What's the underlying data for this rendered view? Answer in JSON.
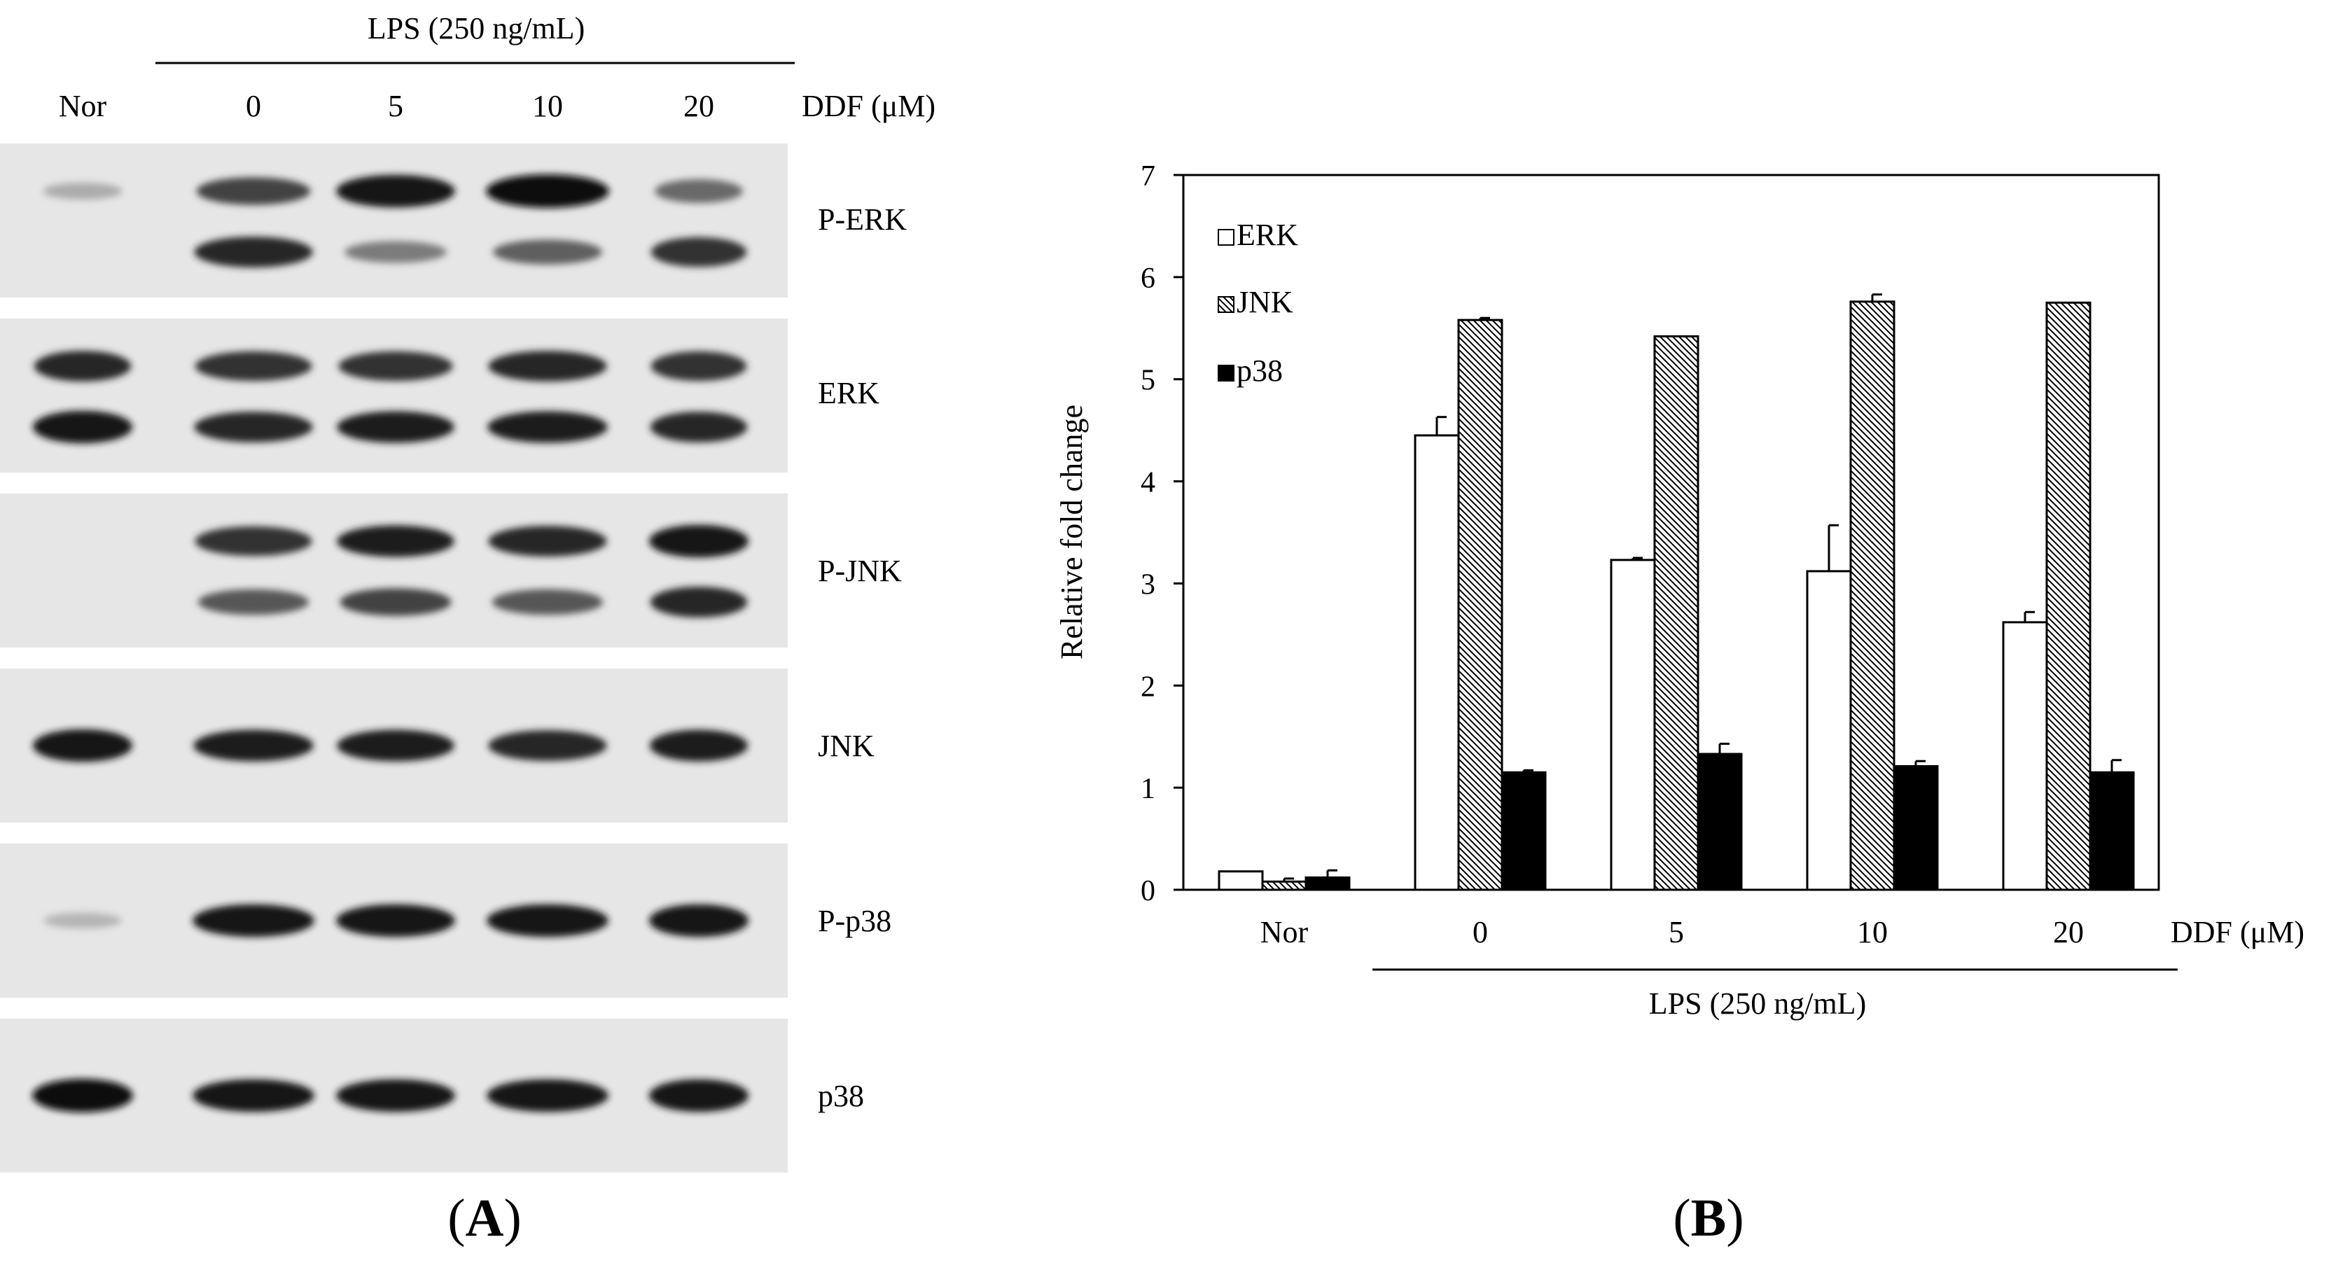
{
  "panel_a": {
    "caption_open": "(",
    "caption_letter": "A",
    "caption_close": ")",
    "treatment_label": "LPS (250 ng/mL)",
    "dose_label": "DDF (μM)",
    "lanes": [
      "Nor",
      "0",
      "5",
      "10",
      "20"
    ],
    "blots": [
      {
        "label": "P-ERK",
        "bands": [
          [
            0.15,
            0.7,
            0.95,
            1.0,
            0.5
          ],
          [
            0,
            0.85,
            0.4,
            0.55,
            0.8
          ]
        ]
      },
      {
        "label": "ERK",
        "bands": [
          [
            0.85,
            0.8,
            0.8,
            0.85,
            0.8
          ],
          [
            0.95,
            0.85,
            0.9,
            0.9,
            0.85
          ]
        ]
      },
      {
        "label": "P-JNK",
        "bands": [
          [
            0,
            0.8,
            0.9,
            0.85,
            0.95
          ],
          [
            0,
            0.6,
            0.7,
            0.6,
            0.85
          ]
        ]
      },
      {
        "label": "JNK",
        "bands": [
          [
            0.95,
            0.9,
            0.9,
            0.85,
            0.9
          ]
        ]
      },
      {
        "label": "P-p38",
        "bands": [
          [
            0.1,
            0.95,
            0.95,
            0.95,
            0.95
          ]
        ]
      },
      {
        "label": "p38",
        "bands": [
          [
            1.0,
            0.95,
            0.95,
            0.95,
            0.95
          ]
        ]
      }
    ]
  },
  "panel_b": {
    "caption_open": "(",
    "caption_letter": "B",
    "caption_close": ")",
    "treatment_label": "LPS (250 ng/mL)",
    "dose_label": "DDF (μM)"
  },
  "chart_data": {
    "type": "bar",
    "categories": [
      "Nor",
      "0",
      "5",
      "10",
      "20"
    ],
    "series": [
      {
        "name": "ERK",
        "fill": "white",
        "values": [
          0.18,
          4.45,
          3.23,
          3.12,
          2.62
        ],
        "errors": [
          0,
          0.18,
          0.02,
          0.45,
          0.1
        ]
      },
      {
        "name": "JNK",
        "fill": "hatched",
        "values": [
          0.08,
          5.58,
          5.42,
          5.76,
          5.75
        ],
        "errors": [
          0.03,
          0.02,
          0,
          0.07,
          0
        ]
      },
      {
        "name": "p38",
        "fill": "black",
        "values": [
          0.12,
          1.15,
          1.33,
          1.21,
          1.15
        ],
        "errors": [
          0.07,
          0.02,
          0.1,
          0.05,
          0.12
        ]
      }
    ],
    "title": "",
    "xlabel": "",
    "ylabel": "Relative  fold change",
    "ylim": [
      0,
      7
    ],
    "yticks": [
      "0",
      "1",
      "2",
      "3",
      "4",
      "5",
      "6",
      "7"
    ],
    "legend_position": "top-left",
    "grid": false
  }
}
